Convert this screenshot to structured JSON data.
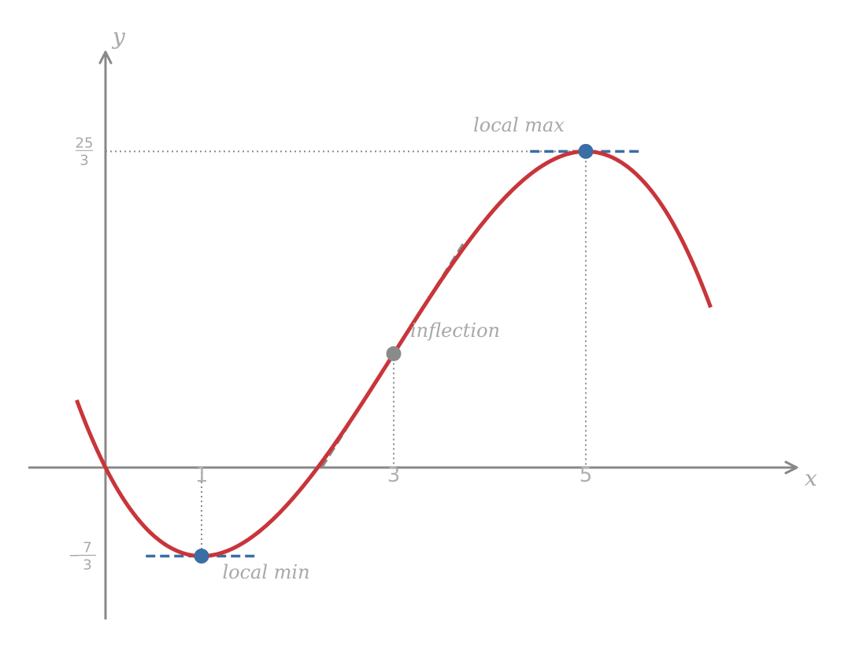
{
  "axes": {
    "x_label": "x",
    "y_label": "y"
  },
  "x_ticks": [
    {
      "value": 1,
      "label": "1"
    },
    {
      "value": 3,
      "label": "3"
    },
    {
      "value": 5,
      "label": "5"
    }
  ],
  "y_ticks": [
    {
      "value": 8.3333,
      "numerator": "25",
      "denominator": "3",
      "sign": ""
    },
    {
      "value": -2.3333,
      "numerator": "7",
      "denominator": "3",
      "sign": "−"
    }
  ],
  "annotations": {
    "local_max": "local max",
    "local_min": "local min",
    "inflection": "inflection"
  },
  "function": {
    "coefficients": [
      0,
      -5,
      3,
      -0.3333333
    ],
    "x_domain": [
      -0.3,
      6.3
    ]
  },
  "points": {
    "local_max": {
      "x": 5,
      "y": 8.3333
    },
    "local_min": {
      "x": 1,
      "y": -2.3333
    },
    "inflection": {
      "x": 3,
      "y": 3
    }
  },
  "colors": {
    "curve": "#c8353a",
    "extremum_point": "#3a6ea5",
    "inflection_point": "#8a8a8a",
    "axis": "#888888",
    "text": "#a8a8a8"
  }
}
